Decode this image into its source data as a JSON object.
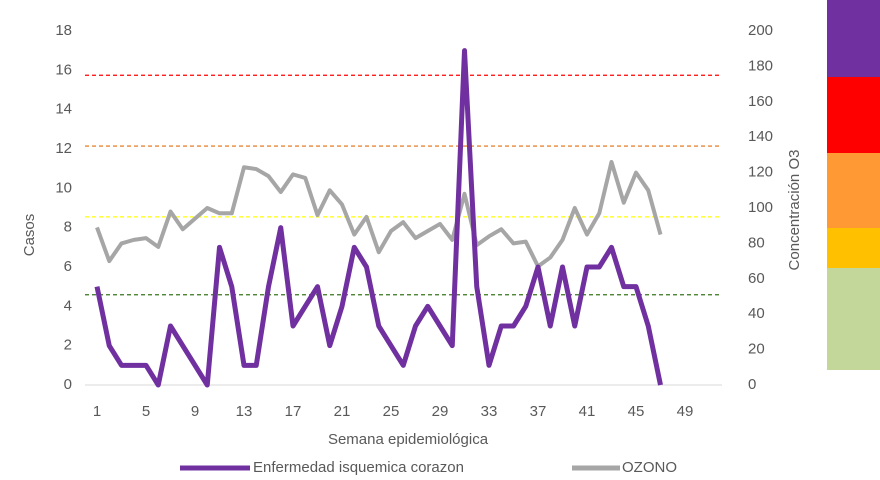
{
  "chart_data": {
    "type": "line",
    "x_label": "Semana epidemiológica",
    "y_label": "Casos",
    "y2_label": "Concentración O3",
    "categories": [
      1,
      null,
      null,
      null,
      5,
      null,
      null,
      null,
      9,
      null,
      null,
      null,
      13,
      null,
      null,
      null,
      17,
      null,
      null,
      null,
      21,
      null,
      null,
      null,
      25,
      null,
      null,
      null,
      29,
      null,
      null,
      null,
      33,
      null,
      null,
      null,
      37,
      null,
      null,
      null,
      41,
      null,
      null,
      null,
      45,
      null,
      null,
      null,
      49,
      null,
      null,
      null
    ],
    "series": [
      {
        "name": "Enfermedad isquemica corazon",
        "color": "#7030a0",
        "values": [
          5,
          2,
          1,
          1,
          1,
          0,
          3,
          2,
          1,
          0,
          7,
          5,
          1,
          1,
          5,
          8,
          3,
          4,
          5,
          2,
          4,
          7,
          6,
          3,
          2,
          1,
          3,
          4,
          3,
          2,
          17,
          5,
          1,
          3,
          3,
          4,
          6,
          3,
          6,
          3,
          6,
          6,
          7,
          5,
          5,
          3,
          0,
          null,
          null,
          null,
          null,
          null
        ]
      },
      {
        "name": "OZONO",
        "color": "#a6a6a6",
        "axis": "y2",
        "values": [
          89,
          70,
          80,
          82,
          83,
          78,
          98,
          88,
          94,
          100,
          97,
          97,
          123,
          122,
          118,
          109,
          119,
          117,
          96,
          110,
          102,
          85,
          95,
          75,
          87,
          92,
          83,
          87,
          91,
          82,
          108,
          79,
          84,
          88,
          80,
          81,
          67,
          72,
          82,
          100,
          85,
          97,
          126,
          103,
          120,
          110,
          85,
          null,
          null,
          null,
          null,
          null
        ]
      }
    ],
    "thresholds": [
      {
        "value": 175,
        "color": "#ff0000"
      },
      {
        "value": 135,
        "color": "#e46c0a"
      },
      {
        "value": 95,
        "color": "#ffff00"
      },
      {
        "value": 51,
        "color": "#38761d"
      }
    ],
    "ylim": [
      0,
      18
    ],
    "yticks": [
      0,
      2,
      4,
      6,
      8,
      10,
      12,
      14,
      16,
      18
    ],
    "y2lim": [
      0,
      200
    ],
    "y2ticks": [
      0,
      20,
      40,
      60,
      80,
      100,
      120,
      140,
      160,
      180,
      200
    ],
    "grid": false
  }
}
